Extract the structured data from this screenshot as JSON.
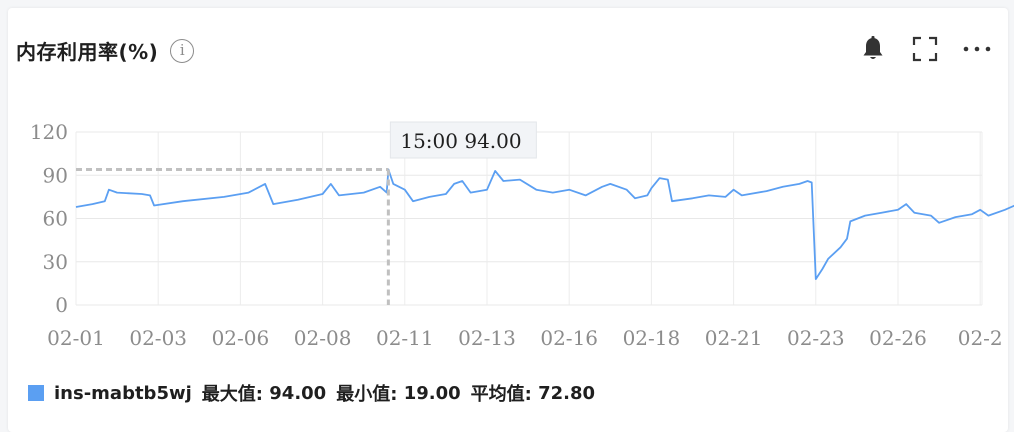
{
  "header": {
    "title": "内存利用率(%)",
    "info_icon": "info-icon",
    "tools": [
      "bell-icon",
      "fullscreen-icon",
      "more-icon"
    ]
  },
  "tooltip": {
    "time": "15:00",
    "value": "94.00"
  },
  "legend": {
    "series_name": "ins-mabtb5wj",
    "max_label": "最大值:",
    "max_value": "94.00",
    "min_label": "最小值:",
    "min_value": "19.00",
    "avg_label": "平均值:",
    "avg_value": "72.80"
  },
  "chart_data": {
    "type": "line",
    "x_ticks": [
      "02-01",
      "02-03",
      "02-06",
      "02-08",
      "02-11",
      "02-13",
      "02-16",
      "02-18",
      "02-21",
      "02-23",
      "02-26",
      "02-2"
    ],
    "y_ticks": [
      "0",
      "30",
      "60",
      "90",
      "120"
    ],
    "ylim": [
      0,
      120
    ],
    "grid": true,
    "color": "#5b9ff2",
    "series": [
      {
        "name": "ins-mabtb5wj",
        "points": [
          [
            0.0,
            68
          ],
          [
            0.2,
            70
          ],
          [
            0.35,
            72
          ],
          [
            0.4,
            80
          ],
          [
            0.5,
            78
          ],
          [
            0.8,
            77
          ],
          [
            0.9,
            76
          ],
          [
            0.95,
            69
          ],
          [
            1.3,
            72
          ],
          [
            1.8,
            75
          ],
          [
            2.1,
            78
          ],
          [
            2.3,
            84
          ],
          [
            2.4,
            70
          ],
          [
            2.7,
            73
          ],
          [
            3.0,
            77
          ],
          [
            3.1,
            84
          ],
          [
            3.2,
            76
          ],
          [
            3.5,
            78
          ],
          [
            3.7,
            82
          ],
          [
            3.78,
            78
          ],
          [
            3.8,
            94
          ],
          [
            3.86,
            84
          ],
          [
            4.0,
            80
          ],
          [
            4.1,
            72
          ],
          [
            4.3,
            75
          ],
          [
            4.5,
            77
          ],
          [
            4.6,
            84
          ],
          [
            4.7,
            86
          ],
          [
            4.8,
            78
          ],
          [
            5.0,
            80
          ],
          [
            5.1,
            93
          ],
          [
            5.2,
            86
          ],
          [
            5.4,
            87
          ],
          [
            5.6,
            80
          ],
          [
            5.8,
            78
          ],
          [
            6.0,
            80
          ],
          [
            6.2,
            76
          ],
          [
            6.4,
            82
          ],
          [
            6.5,
            84
          ],
          [
            6.7,
            80
          ],
          [
            6.8,
            74
          ],
          [
            6.95,
            76
          ],
          [
            7.0,
            81
          ],
          [
            7.1,
            88
          ],
          [
            7.2,
            87
          ],
          [
            7.25,
            72
          ],
          [
            7.5,
            74
          ],
          [
            7.7,
            76
          ],
          [
            7.9,
            75
          ],
          [
            8.0,
            80
          ],
          [
            8.1,
            76
          ],
          [
            8.4,
            79
          ],
          [
            8.6,
            82
          ],
          [
            8.8,
            84
          ],
          [
            8.9,
            86
          ],
          [
            8.95,
            85
          ],
          [
            9.0,
            18
          ],
          [
            9.08,
            25
          ],
          [
            9.15,
            32
          ],
          [
            9.3,
            40
          ],
          [
            9.38,
            46
          ],
          [
            9.42,
            58
          ],
          [
            9.6,
            62
          ],
          [
            9.8,
            64
          ],
          [
            10.0,
            66
          ],
          [
            10.1,
            70
          ],
          [
            10.2,
            64
          ],
          [
            10.4,
            62
          ],
          [
            10.5,
            57
          ],
          [
            10.7,
            61
          ],
          [
            10.9,
            63
          ],
          [
            11.0,
            66
          ],
          [
            11.1,
            62
          ],
          [
            11.3,
            66
          ],
          [
            11.5,
            71
          ],
          [
            11.6,
            65
          ],
          [
            11.8,
            67
          ],
          [
            12.0,
            66
          ],
          [
            12.2,
            65
          ],
          [
            12.3,
            68
          ],
          [
            12.4,
            60
          ],
          [
            12.7,
            62
          ],
          [
            12.8,
            68
          ],
          [
            12.9,
            64
          ],
          [
            13.2,
            68
          ],
          [
            13.4,
            71
          ],
          [
            13.6,
            73
          ],
          [
            13.8,
            76
          ],
          [
            14.0,
            67
          ],
          [
            14.1,
            70
          ],
          [
            14.3,
            68
          ],
          [
            14.4,
            80
          ],
          [
            14.5,
            83
          ],
          [
            14.6,
            79
          ],
          [
            14.9,
            78
          ],
          [
            15.0,
            83
          ],
          [
            15.05,
            63
          ],
          [
            15.2,
            66
          ],
          [
            15.4,
            68
          ],
          [
            15.5,
            76
          ],
          [
            15.6,
            74
          ]
        ]
      }
    ]
  }
}
